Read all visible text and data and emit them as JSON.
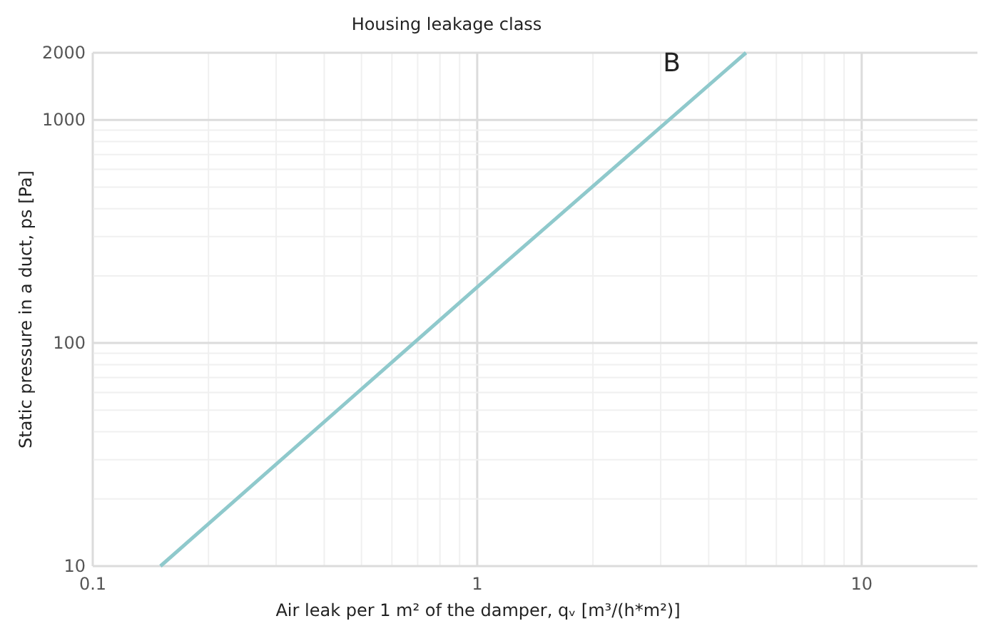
{
  "chart_data": {
    "type": "line",
    "title": "Housing leakage class",
    "xlabel": "Air leak per 1 m² of the damper, qᵥ [m³/(h*m²)]",
    "ylabel": "Static pressure in a duct, ps [Pa]",
    "x": [
      0.15,
      1,
      5
    ],
    "series": [
      {
        "name": "B",
        "color": "#8fc9cc",
        "values": [
          10,
          178,
          2000
        ]
      }
    ],
    "xlim": [
      0.1,
      20
    ],
    "ylim": [
      10,
      2000
    ],
    "xticks": [
      0.1,
      1,
      10
    ],
    "yticks": [
      10,
      100,
      1000,
      2000
    ],
    "log": "xy",
    "grid": true
  }
}
